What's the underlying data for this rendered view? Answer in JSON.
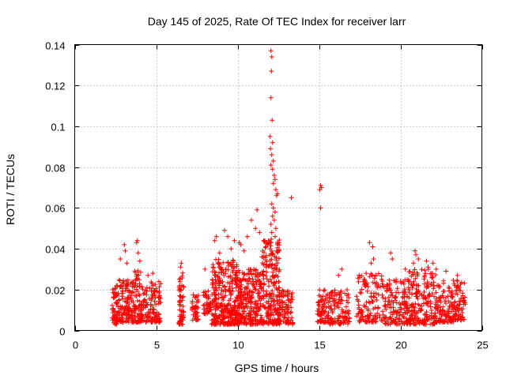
{
  "chart_data": {
    "type": "scatter",
    "title": "Day 145 of 2025, Rate Of TEC Index for receiver larr",
    "xlabel": "GPS time / hours",
    "ylabel": "ROTI / TECUs",
    "xlim": [
      0,
      25
    ],
    "ylim": [
      0,
      0.14
    ],
    "grid": true,
    "marker": "+",
    "color": "#ff0000",
    "x_ticks": [
      0,
      5,
      10,
      15,
      20,
      25
    ],
    "x_tick_labels": [
      "0",
      "5",
      "10",
      "15",
      "20",
      "25"
    ],
    "y_ticks": [
      0,
      0.02,
      0.04,
      0.06,
      0.08,
      0.1,
      0.12,
      0.14
    ],
    "y_tick_labels": [
      "0",
      "0.02",
      "0.04",
      "0.06",
      "0.08",
      "0.1",
      "0.12",
      "0.14"
    ],
    "clusters": [
      {
        "x_range": [
          2.3,
          2.7
        ],
        "y_range": [
          0.003,
          0.022
        ],
        "count": 60
      },
      {
        "x_range": [
          2.7,
          3.5
        ],
        "y_range": [
          0.004,
          0.025
        ],
        "count": 110
      },
      {
        "x_range": [
          3.5,
          4.1
        ],
        "y_range": [
          0.004,
          0.03
        ],
        "count": 90
      },
      {
        "x_range": [
          4.1,
          5.3
        ],
        "y_range": [
          0.004,
          0.024
        ],
        "count": 130
      },
      {
        "x_range": [
          6.4,
          6.7
        ],
        "y_range": [
          0.003,
          0.03
        ],
        "count": 60
      },
      {
        "x_range": [
          7.2,
          7.6
        ],
        "y_range": [
          0.005,
          0.018
        ],
        "count": 40
      },
      {
        "x_range": [
          7.9,
          8.4
        ],
        "y_range": [
          0.008,
          0.02
        ],
        "count": 40
      },
      {
        "x_range": [
          8.4,
          10.0
        ],
        "y_range": [
          0.003,
          0.035
        ],
        "count": 320
      },
      {
        "x_range": [
          10.0,
          11.5
        ],
        "y_range": [
          0.003,
          0.03
        ],
        "count": 260
      },
      {
        "x_range": [
          11.5,
          12.6
        ],
        "y_range": [
          0.003,
          0.045
        ],
        "count": 220
      },
      {
        "x_range": [
          12.6,
          13.4
        ],
        "y_range": [
          0.003,
          0.02
        ],
        "count": 80
      },
      {
        "x_range": [
          14.9,
          15.6
        ],
        "y_range": [
          0.004,
          0.02
        ],
        "count": 70
      },
      {
        "x_range": [
          15.6,
          16.9
        ],
        "y_range": [
          0.003,
          0.02
        ],
        "count": 110
      },
      {
        "x_range": [
          17.3,
          19.0
        ],
        "y_range": [
          0.004,
          0.028
        ],
        "count": 130
      },
      {
        "x_range": [
          19.0,
          20.4
        ],
        "y_range": [
          0.003,
          0.025
        ],
        "count": 130
      },
      {
        "x_range": [
          20.4,
          22.2
        ],
        "y_range": [
          0.003,
          0.03
        ],
        "count": 220
      },
      {
        "x_range": [
          22.2,
          23.3
        ],
        "y_range": [
          0.004,
          0.025
        ],
        "count": 110
      },
      {
        "x_range": [
          23.3,
          24.0
        ],
        "y_range": [
          0.005,
          0.025
        ],
        "count": 70
      }
    ],
    "peaks": [
      {
        "x": 12.05,
        "y": 0.137
      },
      {
        "x": 12.1,
        "y": 0.134
      },
      {
        "x": 12.08,
        "y": 0.127
      },
      {
        "x": 12.05,
        "y": 0.114
      },
      {
        "x": 12.12,
        "y": 0.103
      },
      {
        "x": 12.0,
        "y": 0.095
      },
      {
        "x": 12.15,
        "y": 0.092
      },
      {
        "x": 12.02,
        "y": 0.089
      },
      {
        "x": 12.1,
        "y": 0.086
      },
      {
        "x": 12.2,
        "y": 0.083
      },
      {
        "x": 12.05,
        "y": 0.081
      },
      {
        "x": 12.15,
        "y": 0.079
      },
      {
        "x": 12.25,
        "y": 0.076
      },
      {
        "x": 12.3,
        "y": 0.074
      },
      {
        "x": 12.2,
        "y": 0.072
      },
      {
        "x": 12.35,
        "y": 0.069
      },
      {
        "x": 12.45,
        "y": 0.067
      },
      {
        "x": 12.4,
        "y": 0.066
      },
      {
        "x": 13.3,
        "y": 0.065
      },
      {
        "x": 12.1,
        "y": 0.062
      },
      {
        "x": 12.2,
        "y": 0.06
      },
      {
        "x": 12.3,
        "y": 0.058
      },
      {
        "x": 12.15,
        "y": 0.056
      },
      {
        "x": 12.25,
        "y": 0.054
      },
      {
        "x": 12.05,
        "y": 0.052
      },
      {
        "x": 12.35,
        "y": 0.05
      },
      {
        "x": 12.1,
        "y": 0.048
      },
      {
        "x": 12.3,
        "y": 0.046
      },
      {
        "x": 11.9,
        "y": 0.044
      },
      {
        "x": 12.45,
        "y": 0.042
      },
      {
        "x": 15.1,
        "y": 0.071
      },
      {
        "x": 15.15,
        "y": 0.07
      },
      {
        "x": 15.05,
        "y": 0.069
      },
      {
        "x": 15.1,
        "y": 0.06
      },
      {
        "x": 10.85,
        "y": 0.054
      },
      {
        "x": 11.1,
        "y": 0.05
      },
      {
        "x": 11.2,
        "y": 0.059
      },
      {
        "x": 11.35,
        "y": 0.048
      },
      {
        "x": 10.6,
        "y": 0.046
      },
      {
        "x": 11.6,
        "y": 0.044
      },
      {
        "x": 9.2,
        "y": 0.049
      },
      {
        "x": 9.4,
        "y": 0.046
      },
      {
        "x": 8.6,
        "y": 0.044
      },
      {
        "x": 8.7,
        "y": 0.046
      },
      {
        "x": 9.8,
        "y": 0.044
      },
      {
        "x": 10.2,
        "y": 0.042
      },
      {
        "x": 10.1,
        "y": 0.043
      },
      {
        "x": 8.9,
        "y": 0.038
      },
      {
        "x": 9.6,
        "y": 0.04
      },
      {
        "x": 10.4,
        "y": 0.039
      },
      {
        "x": 11.75,
        "y": 0.041
      },
      {
        "x": 12.0,
        "y": 0.04
      },
      {
        "x": 11.5,
        "y": 0.036
      },
      {
        "x": 3.85,
        "y": 0.044
      },
      {
        "x": 3.8,
        "y": 0.043
      },
      {
        "x": 3.05,
        "y": 0.042
      },
      {
        "x": 3.1,
        "y": 0.039
      },
      {
        "x": 2.8,
        "y": 0.035
      },
      {
        "x": 3.2,
        "y": 0.033
      },
      {
        "x": 3.9,
        "y": 0.038
      },
      {
        "x": 4.0,
        "y": 0.034
      },
      {
        "x": 4.8,
        "y": 0.028
      },
      {
        "x": 4.5,
        "y": 0.027
      },
      {
        "x": 6.55,
        "y": 0.033
      },
      {
        "x": 6.5,
        "y": 0.031
      },
      {
        "x": 8.5,
        "y": 0.031
      },
      {
        "x": 8.0,
        "y": 0.03
      },
      {
        "x": 18.1,
        "y": 0.043
      },
      {
        "x": 18.3,
        "y": 0.041
      },
      {
        "x": 18.35,
        "y": 0.035
      },
      {
        "x": 18.2,
        "y": 0.033
      },
      {
        "x": 17.9,
        "y": 0.028
      },
      {
        "x": 19.4,
        "y": 0.038
      },
      {
        "x": 19.5,
        "y": 0.035
      },
      {
        "x": 20.9,
        "y": 0.039
      },
      {
        "x": 20.95,
        "y": 0.037
      },
      {
        "x": 21.1,
        "y": 0.035
      },
      {
        "x": 20.8,
        "y": 0.033
      },
      {
        "x": 21.6,
        "y": 0.034
      },
      {
        "x": 22.0,
        "y": 0.033
      },
      {
        "x": 22.2,
        "y": 0.03
      },
      {
        "x": 21.7,
        "y": 0.031
      },
      {
        "x": 16.4,
        "y": 0.03
      },
      {
        "x": 16.2,
        "y": 0.027
      },
      {
        "x": 22.8,
        "y": 0.029
      },
      {
        "x": 23.5,
        "y": 0.027
      },
      {
        "x": 20.3,
        "y": 0.03
      }
    ]
  }
}
